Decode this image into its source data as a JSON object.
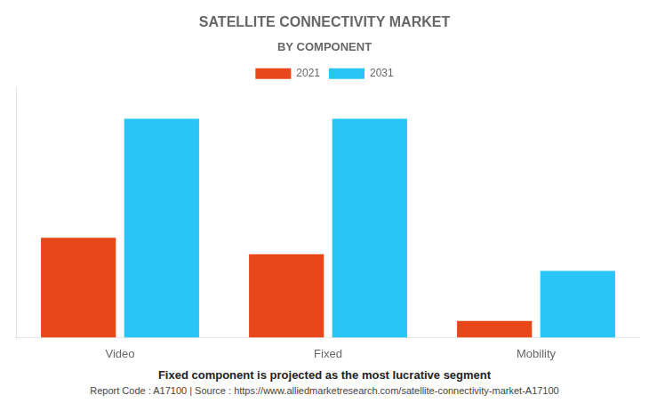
{
  "chart_data": {
    "type": "bar",
    "title": "SATELLITE CONNECTIVITY MARKET",
    "subtitle": "BY COMPONENT",
    "categories": [
      "Video",
      "Fixed",
      "Mobility"
    ],
    "series": [
      {
        "name": "2021",
        "color": "#E8471A",
        "values": [
          42,
          35,
          7
        ]
      },
      {
        "name": "2031",
        "color": "#29C5F6",
        "values": [
          92,
          92,
          28
        ]
      }
    ],
    "ylim": [
      0,
      105
    ],
    "yticks": [],
    "grid": false,
    "tick_labels": "x",
    "legend": "top",
    "annotations": [
      "Fixed component is projected as the most lucrative segment",
      "Report Code : A17100  |  Source : https://www.alliedmarketresearch.com/satellite-connectivity-market-A17100"
    ]
  }
}
